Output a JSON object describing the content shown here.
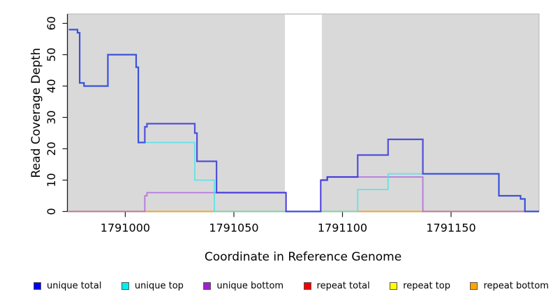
{
  "chart_data": {
    "type": "line",
    "subtype": "step-coverage",
    "title": "",
    "xlabel": "Coordinate in Reference Genome",
    "ylabel": "Read Coverage Depth",
    "xlim": [
      1790973.5,
      1791190.5
    ],
    "ylim": [
      0,
      63
    ],
    "xticks": [
      1791000,
      1791050,
      1791100,
      1791150
    ],
    "yticks": [
      0,
      10,
      20,
      30,
      40,
      50,
      60
    ],
    "grid": false,
    "plot_bg_color": "#d9d9d9",
    "plot_border_color": "#b5b5b5",
    "axis_color": "#1a1a1a",
    "no_data_region": {
      "x0": 1791073.5,
      "x1": 1791090.5,
      "color": "#ffffff"
    },
    "series": [
      {
        "name": "repeat total",
        "color": "#dd2222",
        "width": 1.6,
        "opacity": 0.9,
        "steps": [
          [
            1790974,
            0
          ]
        ],
        "x_end": 1791190.5
      },
      {
        "name": "repeat top",
        "color": "#eded00",
        "width": 1.6,
        "opacity": 0.9,
        "steps": [
          [
            1790974,
            0
          ]
        ],
        "x_end": 1791190.5
      },
      {
        "name": "repeat bottom",
        "color": "#ff9d1e",
        "width": 1.6,
        "opacity": 0.9,
        "steps": [
          [
            1790974,
            0
          ]
        ],
        "x_end": 1791190.5
      },
      {
        "name": "unique bottom",
        "color": "#ab5cde",
        "width": 1.8,
        "opacity": 0.8,
        "steps": [
          [
            1790974,
            0
          ],
          [
            1791009,
            5
          ],
          [
            1791010,
            6
          ],
          [
            1791074,
            0
          ],
          [
            1791090,
            10
          ],
          [
            1791093,
            11
          ],
          [
            1791137,
            0
          ]
        ],
        "x_end": 1791190.5
      },
      {
        "name": "unique top",
        "color": "#4fe3e8",
        "width": 1.8,
        "opacity": 0.85,
        "steps": [
          [
            1790974,
            58
          ],
          [
            1790978,
            57
          ],
          [
            1790979,
            41
          ],
          [
            1790981,
            40
          ],
          [
            1790992,
            50
          ],
          [
            1791005,
            46
          ],
          [
            1791006,
            22
          ],
          [
            1791032,
            10
          ],
          [
            1791041,
            0
          ],
          [
            1791107,
            7
          ],
          [
            1791121,
            12
          ],
          [
            1791172,
            5
          ],
          [
            1791182,
            4
          ],
          [
            1791184,
            0
          ]
        ],
        "x_end": 1791190.5
      },
      {
        "name": "unique total",
        "color": "#2929d8",
        "width": 2.2,
        "opacity": 0.78,
        "steps": [
          [
            1790974,
            58
          ],
          [
            1790978,
            57
          ],
          [
            1790979,
            41
          ],
          [
            1790981,
            40
          ],
          [
            1790992,
            50
          ],
          [
            1791005,
            46
          ],
          [
            1791006,
            22
          ],
          [
            1791009,
            27
          ],
          [
            1791010,
            28
          ],
          [
            1791032,
            25
          ],
          [
            1791033,
            16
          ],
          [
            1791042,
            6
          ],
          [
            1791074,
            0
          ],
          [
            1791090,
            10
          ],
          [
            1791093,
            11
          ],
          [
            1791107,
            18
          ],
          [
            1791121,
            23
          ],
          [
            1791137,
            12
          ],
          [
            1791172,
            5
          ],
          [
            1791182,
            4
          ],
          [
            1791184,
            0
          ]
        ],
        "x_end": 1791190.5
      }
    ],
    "legend": {
      "position": "bottom",
      "items": [
        {
          "label": "unique total",
          "color": "#0000ee"
        },
        {
          "label": "unique top",
          "color": "#00eeee"
        },
        {
          "label": "unique bottom",
          "color": "#a020d0"
        },
        {
          "label": "repeat total",
          "color": "#ee0000"
        },
        {
          "label": "repeat top",
          "color": "#ffff00"
        },
        {
          "label": "repeat bottom",
          "color": "#ffa500"
        }
      ]
    }
  }
}
